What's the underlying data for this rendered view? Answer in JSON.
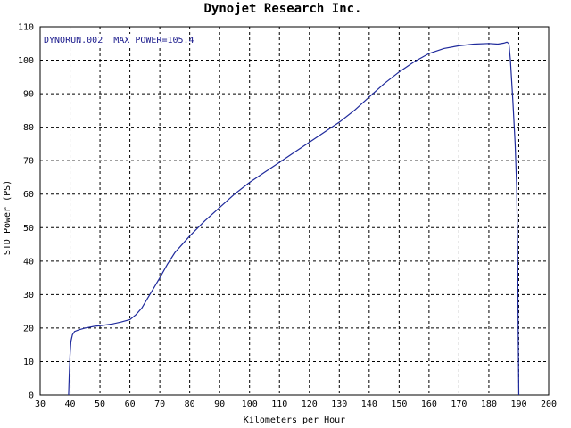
{
  "chart_data": {
    "type": "line",
    "title": "Dynojet  Research  Inc.",
    "xlabel": "Kilometers per Hour",
    "ylabel": "STD Power (PS)",
    "xlim": [
      30,
      200
    ],
    "ylim": [
      0,
      110
    ],
    "x_ticks": [
      30,
      40,
      50,
      60,
      70,
      80,
      90,
      100,
      110,
      120,
      130,
      140,
      150,
      160,
      170,
      180,
      190,
      200
    ],
    "y_ticks": [
      0,
      10,
      20,
      30,
      40,
      50,
      60,
      70,
      80,
      90,
      100,
      110
    ],
    "grid": true,
    "line_color": "#1f2a9c",
    "annotation": "DYNORUN.002  MAX POWER=105.4",
    "series": [
      {
        "x": [
          39.5,
          39.7,
          40.0,
          40.3,
          40.8,
          41.5,
          43.0,
          45.0,
          48.0,
          51.0,
          54.0,
          57.0,
          60.0,
          62.0,
          64.0,
          66.0,
          68.0,
          70.0,
          72.5,
          75.0,
          78.0,
          80.0,
          85.0,
          90.0,
          95.0,
          100.0,
          105.0,
          110.0,
          115.0,
          120.0,
          125.0,
          130.0,
          135.0,
          140.0,
          145.0,
          150.0,
          155.0,
          160.0,
          165.0,
          170.0,
          175.0,
          180.0,
          183.0,
          185.0,
          186.0,
          186.7,
          187.2,
          188.0,
          188.8,
          189.3,
          189.6,
          189.8,
          190.0
        ],
        "y": [
          0.0,
          5.0,
          12.0,
          16.0,
          18.0,
          19.0,
          19.5,
          20.0,
          20.5,
          20.8,
          21.2,
          21.8,
          22.5,
          24.0,
          26.0,
          29.0,
          32.0,
          35.0,
          39.0,
          42.5,
          45.5,
          47.5,
          52.0,
          56.0,
          60.0,
          63.5,
          66.5,
          69.5,
          72.5,
          75.5,
          78.5,
          81.5,
          85.0,
          89.0,
          93.0,
          96.5,
          99.5,
          102.0,
          103.5,
          104.3,
          104.8,
          105.0,
          104.8,
          105.1,
          105.4,
          105.0,
          100.0,
          88.0,
          75.0,
          62.0,
          45.0,
          20.0,
          0.0
        ]
      }
    ]
  }
}
